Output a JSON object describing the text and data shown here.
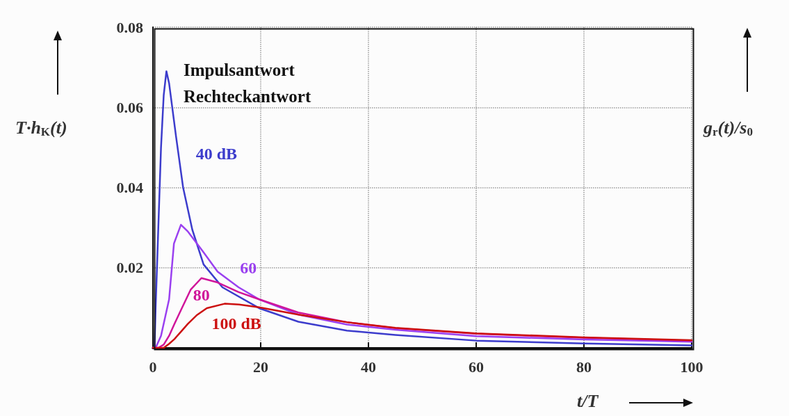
{
  "chart_data": {
    "type": "line",
    "xlabel": "t/T",
    "ylabel": "T·h$_{K}$(t)",
    "y2label": "g$_{r}$(t)/s$_{0}$",
    "annotations": [
      "Impulsantwort",
      "Rechteckantwort"
    ],
    "xlim": [
      0,
      100
    ],
    "xticks": [
      0,
      20,
      40,
      60,
      80,
      100
    ],
    "ylim": [
      0,
      0.08
    ],
    "yticks": [
      {
        "value": 0,
        "label": null
      },
      0.02,
      0.04,
      0.06,
      0.08
    ],
    "grid": true,
    "legend": false,
    "marker": "none",
    "line_style": "solid",
    "series": [
      {
        "name": "40 dB",
        "color": "#3c3ccc",
        "x": [
          0,
          0.3,
          0.5,
          1,
          1.5,
          2,
          2.5,
          3,
          4.3,
          5.6,
          7.3,
          9.4,
          12.9,
          19.7,
          27,
          36,
          45,
          60,
          80,
          100
        ],
        "values": [
          0,
          0,
          0.01,
          0.03,
          0.05,
          0.063,
          0.069,
          0.066,
          0.0526,
          0.04,
          0.0295,
          0.0208,
          0.0151,
          0.0099,
          0.0065,
          0.0043,
          0.0032,
          0.0018,
          0.0011,
          0.0006
        ]
      },
      {
        "name": "60",
        "color": "#9a40f0",
        "x": [
          0,
          0.5,
          1.5,
          3,
          3.9,
          5.2,
          6.5,
          9.4,
          12,
          15.9,
          19.7,
          27,
          36,
          45,
          60,
          80,
          100
        ],
        "values": [
          0,
          0,
          0.003,
          0.0121,
          0.026,
          0.0307,
          0.029,
          0.0238,
          0.019,
          0.0151,
          0.0121,
          0.0083,
          0.0058,
          0.0045,
          0.0029,
          0.0021,
          0.0015
        ]
      },
      {
        "name": "80",
        "color": "#d0159a",
        "x": [
          0,
          1,
          2,
          3,
          4,
          5.2,
          7,
          9,
          12,
          15.9,
          19.7,
          27,
          36,
          45,
          60,
          80,
          100
        ],
        "values": [
          0,
          0,
          0.0008,
          0.003,
          0.006,
          0.0094,
          0.0145,
          0.0174,
          0.0163,
          0.0139,
          0.0121,
          0.0088,
          0.0064,
          0.0049,
          0.0035,
          0.0025,
          0.0018
        ]
      },
      {
        "name": "100 dB",
        "color": "#cc1010",
        "x": [
          0,
          2,
          3,
          4,
          5.2,
          6.5,
          8.1,
          10,
          13.3,
          16,
          19.7,
          27,
          36,
          45,
          60,
          80,
          100
        ],
        "values": [
          0,
          0,
          0.001,
          0.0022,
          0.004,
          0.006,
          0.0081,
          0.0099,
          0.011,
          0.0108,
          0.0101,
          0.0083,
          0.0064,
          0.005,
          0.0036,
          0.0026,
          0.0019
        ]
      }
    ]
  }
}
